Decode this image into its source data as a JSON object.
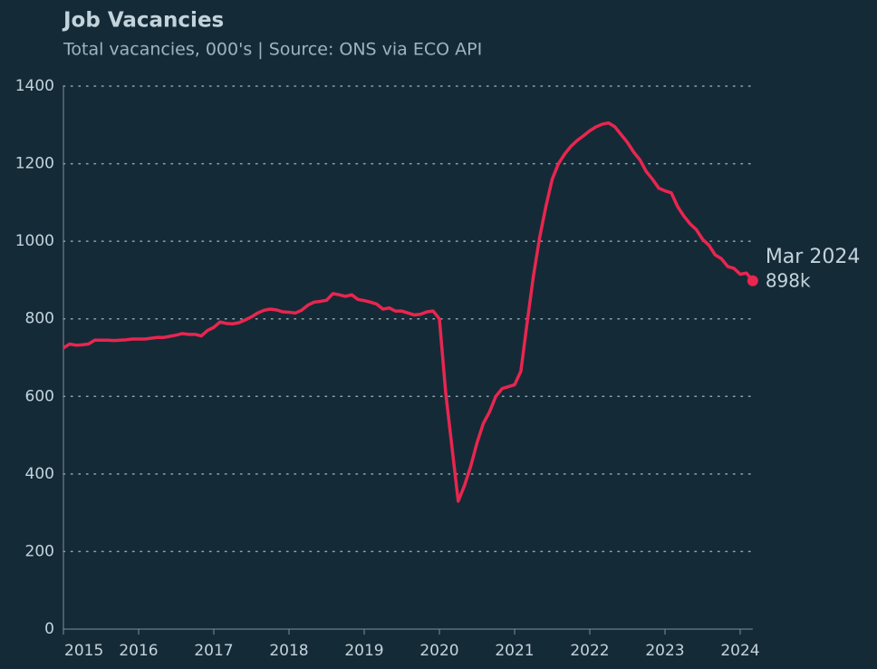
{
  "chart_data": {
    "type": "line",
    "title": "Job Vacancies",
    "subtitle": "Total vacancies, 000's | Source: ONS via ECO API",
    "x": [
      "2015-01",
      "2015-02",
      "2015-03",
      "2015-04",
      "2015-05",
      "2015-06",
      "2015-07",
      "2015-08",
      "2015-09",
      "2015-10",
      "2015-11",
      "2015-12",
      "2016-01",
      "2016-02",
      "2016-03",
      "2016-04",
      "2016-05",
      "2016-06",
      "2016-07",
      "2016-08",
      "2016-09",
      "2016-10",
      "2016-11",
      "2016-12",
      "2017-01",
      "2017-02",
      "2017-03",
      "2017-04",
      "2017-05",
      "2017-06",
      "2017-07",
      "2017-08",
      "2017-09",
      "2017-10",
      "2017-11",
      "2017-12",
      "2018-01",
      "2018-02",
      "2018-03",
      "2018-04",
      "2018-05",
      "2018-06",
      "2018-07",
      "2018-08",
      "2018-09",
      "2018-10",
      "2018-11",
      "2018-12",
      "2019-01",
      "2019-02",
      "2019-03",
      "2019-04",
      "2019-05",
      "2019-06",
      "2019-07",
      "2019-08",
      "2019-09",
      "2019-10",
      "2019-11",
      "2019-12",
      "2020-01",
      "2020-02",
      "2020-03",
      "2020-04",
      "2020-05",
      "2020-06",
      "2020-07",
      "2020-08",
      "2020-09",
      "2020-10",
      "2020-11",
      "2020-12",
      "2021-01",
      "2021-02",
      "2021-03",
      "2021-04",
      "2021-05",
      "2021-06",
      "2021-07",
      "2021-08",
      "2021-09",
      "2021-10",
      "2021-11",
      "2021-12",
      "2022-01",
      "2022-02",
      "2022-03",
      "2022-04",
      "2022-05",
      "2022-06",
      "2022-07",
      "2022-08",
      "2022-09",
      "2022-10",
      "2022-11",
      "2022-12",
      "2023-01",
      "2023-02",
      "2023-03",
      "2023-04",
      "2023-05",
      "2023-06",
      "2023-07",
      "2023-08",
      "2023-09",
      "2023-10",
      "2023-11",
      "2023-12",
      "2024-01",
      "2024-02",
      "2024-03"
    ],
    "values": [
      725,
      735,
      732,
      733,
      735,
      745,
      745,
      745,
      744,
      745,
      746,
      748,
      748,
      748,
      750,
      752,
      752,
      755,
      758,
      762,
      760,
      760,
      756,
      770,
      778,
      792,
      788,
      787,
      790,
      797,
      805,
      815,
      822,
      825,
      823,
      818,
      817,
      815,
      822,
      835,
      843,
      845,
      848,
      865,
      862,
      858,
      862,
      850,
      847,
      843,
      838,
      825,
      828,
      820,
      820,
      815,
      810,
      812,
      818,
      820,
      800,
      610,
      470,
      330,
      370,
      420,
      480,
      530,
      560,
      600,
      620,
      625,
      630,
      665,
      790,
      910,
      1010,
      1090,
      1160,
      1200,
      1225,
      1245,
      1260,
      1272,
      1285,
      1295,
      1302,
      1305,
      1295,
      1275,
      1255,
      1230,
      1210,
      1180,
      1160,
      1137,
      1130,
      1125,
      1090,
      1065,
      1045,
      1030,
      1005,
      990,
      965,
      955,
      935,
      930,
      915,
      918,
      898
    ],
    "value_labels": [
      null,
      null,
      null,
      null,
      null,
      null,
      null,
      null,
      null,
      null,
      null,
      null,
      null,
      null,
      null,
      null,
      null,
      null,
      null,
      null,
      null,
      null,
      null,
      null,
      null,
      null,
      null,
      null,
      null,
      null,
      null,
      null,
      null,
      null,
      null,
      null,
      null,
      null,
      null,
      null,
      null,
      null,
      null,
      null,
      null,
      null,
      null,
      null,
      null,
      null,
      null,
      null,
      null,
      null,
      null,
      null,
      null,
      null,
      null,
      null,
      null,
      null,
      null,
      null,
      null,
      null,
      null,
      null,
      null,
      null,
      null,
      null,
      null,
      null,
      null,
      null,
      null,
      null,
      null,
      null,
      null,
      null,
      null,
      null,
      null,
      null,
      null,
      null,
      null,
      null,
      null,
      null,
      null,
      null,
      null,
      null,
      null,
      null,
      null,
      null,
      null,
      null,
      null,
      null,
      null,
      null,
      null,
      null,
      null,
      null,
      "898k"
    ],
    "annotation": "Mar 2024",
    "color": "#e8264f",
    "xlim": [
      "2015-01",
      "2024-03"
    ],
    "xticks": [
      {
        "value": "2015-01",
        "label": "2015"
      },
      {
        "value": "2016-01",
        "label": "2016"
      },
      {
        "value": "2017-01",
        "label": "2017"
      },
      {
        "value": "2018-01",
        "label": "2018"
      },
      {
        "value": "2019-01",
        "label": "2019"
      },
      {
        "value": "2020-01",
        "label": "2020"
      },
      {
        "value": "2021-01",
        "label": "2021"
      },
      {
        "value": "2022-01",
        "label": "2022"
      },
      {
        "value": "2023-01",
        "label": "2023"
      },
      {
        "value": "2024-01",
        "label": "2024"
      }
    ],
    "ylim": [
      0,
      1400
    ],
    "yticks": [
      0,
      200,
      400,
      600,
      800,
      1000,
      1200,
      1400
    ],
    "grid": true
  }
}
